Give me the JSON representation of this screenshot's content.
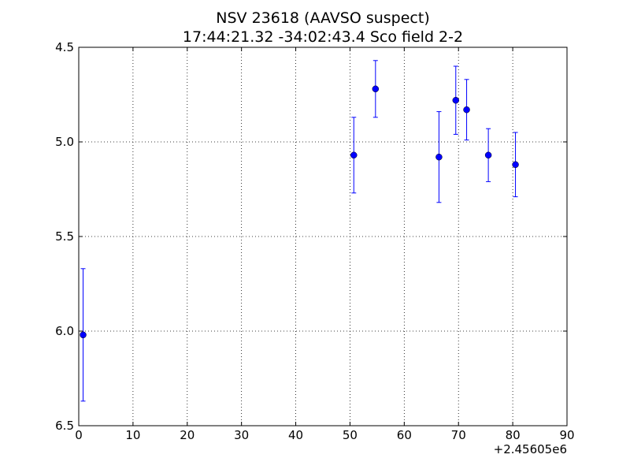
{
  "chart_data": {
    "type": "scatter",
    "title": "NSV 23618  (AAVSO suspect)",
    "subtitle": "17:44:21.32 -34:02:43.4 Sco field 2-2",
    "xlabel": "",
    "ylabel": "",
    "x_offset_label": "+2.45605e6",
    "xlim": [
      0,
      90
    ],
    "ylim": [
      4.5,
      6.5
    ],
    "y_inverted": true,
    "grid": true,
    "x_ticks": [
      0,
      10,
      20,
      30,
      40,
      50,
      60,
      70,
      80,
      90
    ],
    "y_ticks": [
      4.5,
      5.0,
      5.5,
      6.0,
      6.5
    ],
    "x_tick_labels": [
      "0",
      "10",
      "20",
      "30",
      "40",
      "50",
      "60",
      "70",
      "80",
      "90"
    ],
    "y_tick_labels": [
      "4.5",
      "5.0",
      "5.5",
      "6.0",
      "6.5"
    ],
    "marker_color": "#0000ff",
    "series": [
      {
        "points": [
          {
            "x": 0.8,
            "y": 6.02,
            "err": 0.35
          },
          {
            "x": 50.7,
            "y": 5.07,
            "err": 0.2
          },
          {
            "x": 54.7,
            "y": 4.72,
            "err": 0.15
          },
          {
            "x": 66.4,
            "y": 5.08,
            "err": 0.24
          },
          {
            "x": 69.5,
            "y": 4.78,
            "err": 0.18
          },
          {
            "x": 71.5,
            "y": 4.83,
            "err": 0.16
          },
          {
            "x": 75.5,
            "y": 5.07,
            "err": 0.14
          },
          {
            "x": 80.5,
            "y": 5.12,
            "err": 0.17
          }
        ]
      }
    ]
  }
}
